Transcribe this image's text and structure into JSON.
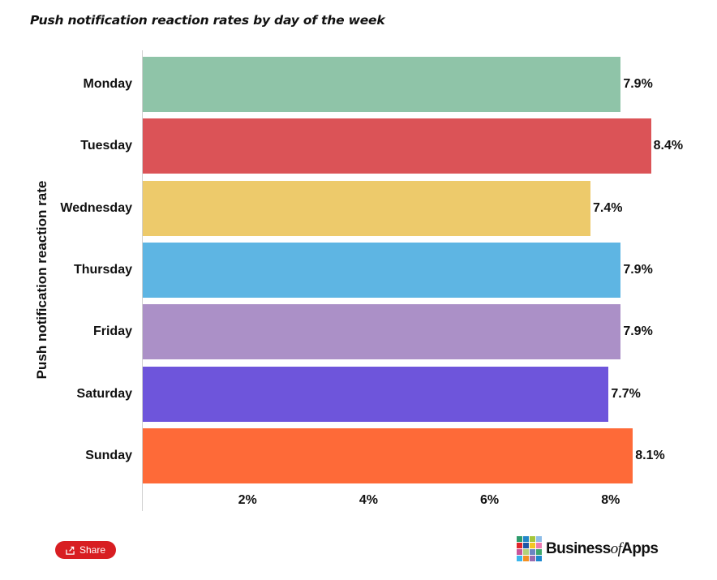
{
  "title": "Push notification reaction rates by day of the week",
  "chart_data": {
    "type": "bar",
    "orientation": "horizontal",
    "title": "Push notification reaction rates by day of the week",
    "xlabel": "",
    "ylabel": "Push notification reaction rate",
    "categories": [
      "Monday",
      "Tuesday",
      "Wednesday",
      "Thursday",
      "Friday",
      "Saturday",
      "Sunday"
    ],
    "values": [
      7.9,
      8.4,
      7.4,
      7.9,
      7.9,
      7.7,
      8.1
    ],
    "value_labels": [
      "7.9%",
      "8.4%",
      "7.4%",
      "7.9%",
      "7.9%",
      "7.7%",
      "8.1%"
    ],
    "colors": [
      "#8fc4a8",
      "#db5357",
      "#edca6b",
      "#5eb5e3",
      "#ab90c7",
      "#6e55db",
      "#fe6a38"
    ],
    "x_ticks": [
      2,
      4,
      6,
      8
    ],
    "x_tick_labels": [
      "2%",
      "4%",
      "6%",
      "8%"
    ],
    "xlim": [
      0,
      9
    ],
    "grid": false,
    "legend": null
  },
  "share": {
    "label": "Share",
    "icon": "share-icon",
    "color": "#d81e22"
  },
  "logo": {
    "text_a": "Business",
    "text_b": "of",
    "text_c": "Apps",
    "grid_colors": [
      "#2e9b6b",
      "#2386c9",
      "#a5c63b",
      "#8dbde8",
      "#e0252a",
      "#1f56a5",
      "#f3c622",
      "#ec7bb1",
      "#c8559a",
      "#b2d27a",
      "#6b86c3",
      "#3fa86c",
      "#3cb6ec",
      "#f39122",
      "#9a6bb0",
      "#1b87cf"
    ]
  }
}
